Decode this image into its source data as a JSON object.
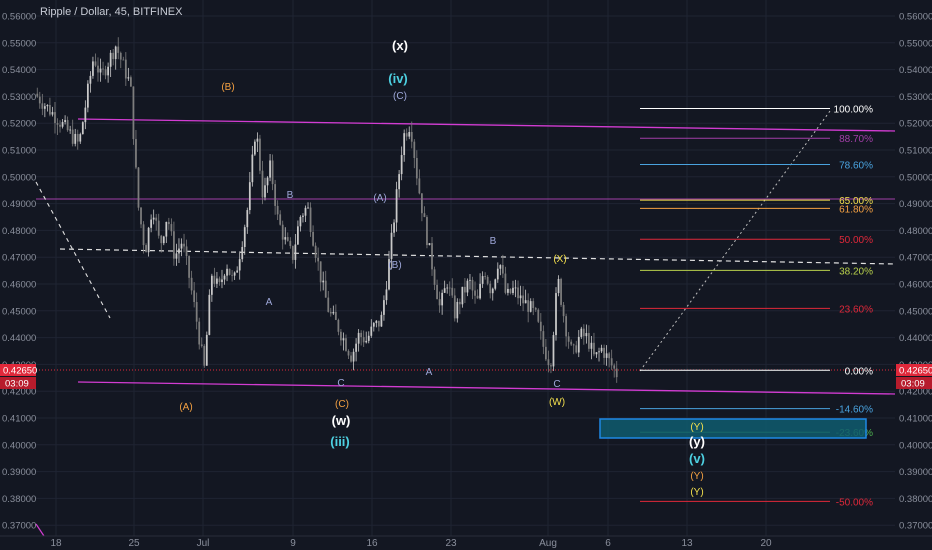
{
  "header": {
    "title": "Ripple / Dollar, 45, BITFINEX"
  },
  "colors": {
    "background": "#131722",
    "grid": "#1f2433",
    "axis_text": "#8a8f9c",
    "candle_up": "#c9c9c9",
    "candle_down": "#7d7d7d",
    "magenta_line": "#d23cd2",
    "price_tag": "#e0283a",
    "white": "#ffffff",
    "box_fill": "#0f5c6e",
    "box_border": "#1e88e5"
  },
  "price_tag": {
    "price": "0.42650",
    "timer": "03:09"
  },
  "chart_data": {
    "type": "candlestick",
    "title": "Ripple / Dollar, 45, BITFINEX",
    "ylim": [
      0.365,
      0.563
    ],
    "x_ticks": [
      "18",
      "25",
      "Jul",
      "9",
      "16",
      "23",
      "Aug",
      "6",
      "13",
      "20"
    ],
    "y_ticks": [
      "0.37000",
      "0.38000",
      "0.39000",
      "0.40000",
      "0.41000",
      "0.42000",
      "0.43000",
      "0.44000",
      "0.45000",
      "0.46000",
      "0.47000",
      "0.48000",
      "0.49000",
      "0.50000",
      "0.51000",
      "0.52000",
      "0.53000",
      "0.54000",
      "0.55000",
      "0.56000"
    ],
    "y_tick_values": [
      0.37,
      0.38,
      0.39,
      0.4,
      0.41,
      0.42,
      0.43,
      0.44,
      0.45,
      0.46,
      0.47,
      0.48,
      0.49,
      0.5,
      0.51,
      0.52,
      0.53,
      0.54,
      0.55,
      0.56
    ],
    "price_path": [
      [
        0,
        0.531
      ],
      [
        3,
        0.522
      ],
      [
        6,
        0.512
      ],
      [
        8,
        0.545
      ],
      [
        9,
        0.537
      ],
      [
        11,
        0.549
      ],
      [
        13,
        0.534
      ],
      [
        14,
        0.49
      ],
      [
        15,
        0.472
      ],
      [
        16,
        0.49
      ],
      [
        17,
        0.474
      ],
      [
        18,
        0.486
      ],
      [
        19,
        0.47
      ],
      [
        20,
        0.476
      ],
      [
        21,
        0.462
      ],
      [
        22,
        0.446
      ],
      [
        23,
        0.428
      ],
      [
        24,
        0.464
      ],
      [
        25,
        0.458
      ],
      [
        26,
        0.468
      ],
      [
        27,
        0.46
      ],
      [
        28,
        0.474
      ],
      [
        29,
        0.49
      ],
      [
        30,
        0.519
      ],
      [
        31,
        0.492
      ],
      [
        32,
        0.504
      ],
      [
        33,
        0.484
      ],
      [
        34,
        0.476
      ],
      [
        35,
        0.47
      ],
      [
        36,
        0.485
      ],
      [
        37,
        0.489
      ],
      [
        38,
        0.474
      ],
      [
        39,
        0.46
      ],
      [
        40,
        0.449
      ],
      [
        41,
        0.445
      ],
      [
        42,
        0.439
      ],
      [
        43,
        0.433
      ],
      [
        44,
        0.441
      ],
      [
        45,
        0.439
      ],
      [
        46,
        0.444
      ],
      [
        47,
        0.446
      ],
      [
        48,
        0.466
      ],
      [
        49,
        0.49
      ],
      [
        50,
        0.515
      ],
      [
        51,
        0.52
      ],
      [
        52,
        0.498
      ],
      [
        53,
        0.481
      ],
      [
        54,
        0.466
      ],
      [
        55,
        0.451
      ],
      [
        56,
        0.461
      ],
      [
        57,
        0.449
      ],
      [
        58,
        0.456
      ],
      [
        59,
        0.461
      ],
      [
        60,
        0.452
      ],
      [
        61,
        0.466
      ],
      [
        62,
        0.457
      ],
      [
        63,
        0.47
      ],
      [
        64,
        0.455
      ],
      [
        65,
        0.458
      ],
      [
        66,
        0.454
      ],
      [
        67,
        0.452
      ],
      [
        68,
        0.448
      ],
      [
        69,
        0.437
      ],
      [
        70,
        0.43
      ],
      [
        71,
        0.462
      ],
      [
        72,
        0.445
      ],
      [
        73,
        0.433
      ],
      [
        74,
        0.441
      ],
      [
        75,
        0.44
      ],
      [
        76,
        0.432
      ],
      [
        77,
        0.436
      ],
      [
        78,
        0.431
      ],
      [
        79,
        0.4265
      ]
    ],
    "fibonacci": [
      {
        "label": "100.00%",
        "value": 0.5255,
        "color": "#ffffff"
      },
      {
        "label": "88.70%",
        "value": 0.5144,
        "color": "#a23fa8"
      },
      {
        "label": "78.60%",
        "value": 0.5046,
        "color": "#4aa3df"
      },
      {
        "label": "65.00%",
        "value": 0.4913,
        "color": "#f4e04d"
      },
      {
        "label": "61.80%",
        "value": 0.4882,
        "color": "#f5a142"
      },
      {
        "label": "50.00%",
        "value": 0.4767,
        "color": "#e0283a"
      },
      {
        "label": "38.20%",
        "value": 0.4651,
        "color": "#b8d14b"
      },
      {
        "label": "23.60%",
        "value": 0.4509,
        "color": "#e0283a"
      },
      {
        "label": "0.00%",
        "value": 0.4278,
        "color": "#ffffff"
      },
      {
        "label": "-14.60%",
        "value": 0.4135,
        "color": "#4aa3df"
      },
      {
        "label": "-23.60%",
        "value": 0.4047,
        "color": "#4caf50"
      },
      {
        "label": "-50.00%",
        "value": 0.3789,
        "color": "#e0283a"
      }
    ],
    "wave_labels": [
      {
        "text": "(x)",
        "color": "#ffffff",
        "bold": true
      },
      {
        "text": "(iv)",
        "color": "#4dd0e1",
        "bold": true
      },
      {
        "text": "(C)",
        "color": "#9fa8da",
        "bold": false
      },
      {
        "text": "(B)",
        "color": "#f5a142",
        "bold": false
      },
      {
        "text": "B",
        "color": "#9fa8da",
        "bold": false
      },
      {
        "text": "(A)",
        "color": "#9fa8da",
        "bold": false
      },
      {
        "text": "B",
        "color": "#9fa8da",
        "bold": false
      },
      {
        "text": "(X)",
        "color": "#f4e04d",
        "bold": false
      },
      {
        "text": "(B)",
        "color": "#9fa8da",
        "bold": false
      },
      {
        "text": "A",
        "color": "#9fa8da",
        "bold": false
      },
      {
        "text": "A",
        "color": "#9fa8da",
        "bold": false
      },
      {
        "text": "C",
        "color": "#9fa8da",
        "bold": false
      },
      {
        "text": "C",
        "color": "#9fa8da",
        "bold": false
      },
      {
        "text": "(A)",
        "color": "#f5a142",
        "bold": false
      },
      {
        "text": "(C)",
        "color": "#f5a142",
        "bold": false
      },
      {
        "text": "(W)",
        "color": "#f4e04d",
        "bold": false
      },
      {
        "text": "(w)",
        "color": "#ffffff",
        "bold": true
      },
      {
        "text": "(iii)",
        "color": "#4dd0e1",
        "bold": true
      },
      {
        "text": "(Y)",
        "color": "#f4e04d",
        "bold": false
      },
      {
        "text": "(y)",
        "color": "#ffffff",
        "bold": true
      },
      {
        "text": "(v)",
        "color": "#4dd0e1",
        "bold": true
      },
      {
        "text": "(Y)",
        "color": "#f5a142",
        "bold": false
      },
      {
        "text": "(Y)",
        "color": "#f4e04d",
        "bold": false
      }
    ]
  }
}
